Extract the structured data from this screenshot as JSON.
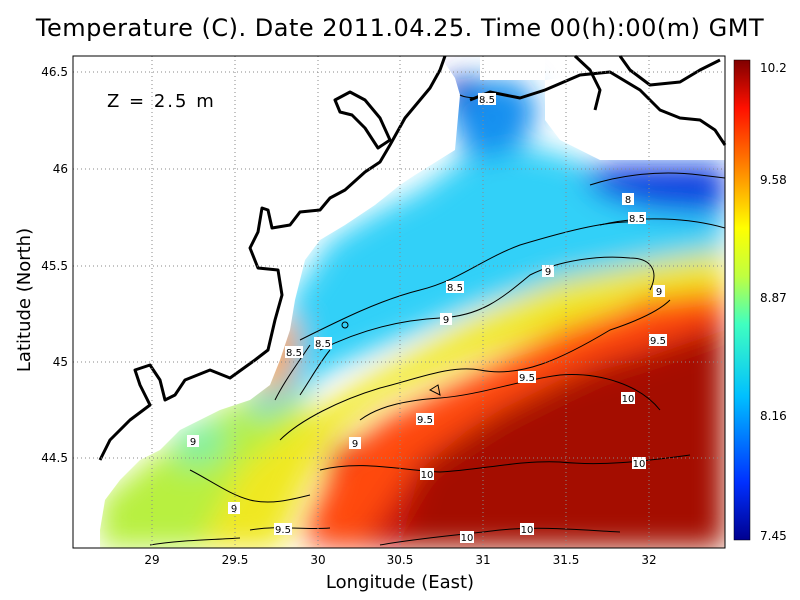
{
  "title": "Temperature (C). Date 2011.04.25. Time 00(h):00(m) GMT",
  "depth_label": "Z = 2.5 m",
  "x_axis": {
    "label": "Longitude (East)",
    "ticks": [
      "29",
      "29.5",
      "30",
      "30.5",
      "31",
      "31.5",
      "32"
    ]
  },
  "y_axis": {
    "label": "Latitude (North)",
    "ticks": [
      "46.5",
      "46",
      "45.5",
      "45",
      "44.5"
    ]
  },
  "colorbar": {
    "labels": [
      "10.2",
      "9.58",
      "8.87",
      "8.16",
      "7.45"
    ]
  },
  "contour_labels": [
    "8.5",
    "8",
    "8.5",
    "9",
    "8.5",
    "9",
    "9",
    "8.5",
    "8.5",
    "9.5",
    "9.5",
    "10",
    "9.5",
    "9",
    "10",
    "10",
    "9",
    "9",
    "9.5",
    "10",
    "10"
  ],
  "colors": {
    "coast": "#000000",
    "grid": "#9a9a9a",
    "land": "#ffffff"
  }
}
